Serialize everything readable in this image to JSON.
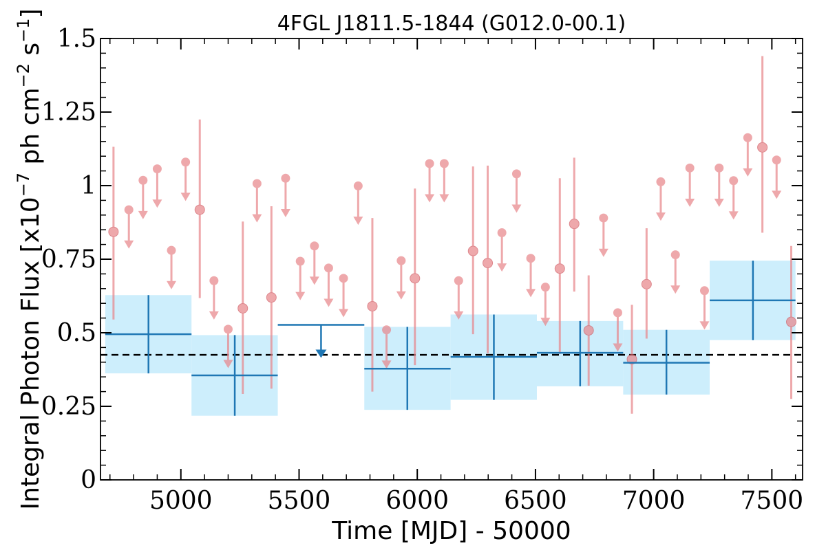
{
  "chart_data": {
    "type": "scatter",
    "title": "4FGL J1811.5-1844 (G012.0-00.1)",
    "xlabel": "Time [MJD] - 50000",
    "ylabel": "Integral Photon Flux [x10",
    "ylabel_sup1": "−7",
    "ylabel_mid": " ph cm",
    "ylabel_sup2": "−2",
    "ylabel_mid2": " s",
    "ylabel_sup3": "−1",
    "ylabel_end": "]",
    "xlim": [
      4660,
      7630
    ],
    "ylim": [
      0,
      1.5
    ],
    "xticks": [
      5000,
      5500,
      6000,
      6500,
      7000,
      7500
    ],
    "yticks": [
      0,
      0.25,
      0.5,
      0.75,
      1,
      1.25,
      1.5
    ],
    "ytick_labels": [
      "0",
      "0.25",
      "0.5",
      "0.75",
      "1",
      "1.25",
      "1.5"
    ],
    "mean_flux": 0.425,
    "colors": {
      "short_bins": "#e8878c",
      "long_bins": "#1f77b4",
      "long_bin_band": "#cdeefc",
      "mean_line": "#000000"
    },
    "long_bins": [
      {
        "x": 4863,
        "x0": 4680,
        "x1": 5045,
        "y": 0.495,
        "ylo": 0.362,
        "yhi": 0.628,
        "upper_limit": false
      },
      {
        "x": 5228,
        "x0": 5045,
        "x1": 5410,
        "y": 0.355,
        "ylo": 0.218,
        "yhi": 0.492,
        "upper_limit": false
      },
      {
        "x": 5593,
        "x0": 5410,
        "x1": 5776,
        "y": 0.527,
        "ylo": 0.527,
        "yhi": 0.527,
        "upper_limit": true
      },
      {
        "x": 5958,
        "x0": 5776,
        "x1": 6141,
        "y": 0.378,
        "ylo": 0.238,
        "yhi": 0.52,
        "upper_limit": false
      },
      {
        "x": 6324,
        "x0": 6141,
        "x1": 6506,
        "y": 0.418,
        "ylo": 0.272,
        "yhi": 0.562,
        "upper_limit": false
      },
      {
        "x": 6689,
        "x0": 6506,
        "x1": 6871,
        "y": 0.432,
        "ylo": 0.318,
        "yhi": 0.54,
        "upper_limit": false
      },
      {
        "x": 7054,
        "x0": 6871,
        "x1": 7237,
        "y": 0.398,
        "ylo": 0.29,
        "yhi": 0.51,
        "upper_limit": false
      },
      {
        "x": 7420,
        "x0": 7237,
        "x1": 7600,
        "y": 0.61,
        "ylo": 0.475,
        "yhi": 0.745,
        "upper_limit": false
      }
    ],
    "short_bins": [
      {
        "x": 4715,
        "y": 0.843,
        "ylo": 0.545,
        "yhi": 1.132,
        "upper_limit": false
      },
      {
        "x": 4780,
        "y": 0.918,
        "upper_limit": true
      },
      {
        "x": 4840,
        "y": 1.018,
        "upper_limit": true
      },
      {
        "x": 4900,
        "y": 1.057,
        "upper_limit": true
      },
      {
        "x": 4960,
        "y": 0.78,
        "upper_limit": true
      },
      {
        "x": 5020,
        "y": 1.08,
        "upper_limit": true
      },
      {
        "x": 5080,
        "y": 0.918,
        "ylo": 0.618,
        "yhi": 1.225,
        "upper_limit": false
      },
      {
        "x": 5140,
        "y": 0.677,
        "upper_limit": true
      },
      {
        "x": 5200,
        "y": 0.512,
        "upper_limit": true
      },
      {
        "x": 5262,
        "y": 0.583,
        "ylo": 0.292,
        "yhi": 0.878,
        "upper_limit": false
      },
      {
        "x": 5322,
        "y": 1.007,
        "upper_limit": true
      },
      {
        "x": 5383,
        "y": 0.62,
        "ylo": 0.31,
        "yhi": 0.93,
        "upper_limit": false
      },
      {
        "x": 5443,
        "y": 1.025,
        "upper_limit": true
      },
      {
        "x": 5505,
        "y": 0.743,
        "upper_limit": true
      },
      {
        "x": 5565,
        "y": 0.795,
        "upper_limit": true
      },
      {
        "x": 5625,
        "y": 0.72,
        "upper_limit": true
      },
      {
        "x": 5688,
        "y": 0.685,
        "upper_limit": true
      },
      {
        "x": 5750,
        "y": 0.999,
        "upper_limit": true
      },
      {
        "x": 5810,
        "y": 0.59,
        "ylo": 0.3,
        "yhi": 0.89,
        "upper_limit": false
      },
      {
        "x": 5870,
        "y": 0.51,
        "upper_limit": true
      },
      {
        "x": 5932,
        "y": 0.745,
        "upper_limit": true
      },
      {
        "x": 5990,
        "y": 0.685,
        "ylo": 0.39,
        "yhi": 0.99,
        "upper_limit": false
      },
      {
        "x": 6052,
        "y": 1.075,
        "upper_limit": true
      },
      {
        "x": 6114,
        "y": 1.075,
        "upper_limit": true
      },
      {
        "x": 6175,
        "y": 0.677,
        "upper_limit": true
      },
      {
        "x": 6236,
        "y": 0.778,
        "ylo": 0.495,
        "yhi": 1.065,
        "upper_limit": false
      },
      {
        "x": 6298,
        "y": 0.737,
        "ylo": 0.43,
        "yhi": 1.068,
        "upper_limit": false
      },
      {
        "x": 6358,
        "y": 0.84,
        "upper_limit": true
      },
      {
        "x": 6420,
        "y": 1.04,
        "upper_limit": true
      },
      {
        "x": 6480,
        "y": 0.753,
        "upper_limit": true
      },
      {
        "x": 6542,
        "y": 0.655,
        "upper_limit": true
      },
      {
        "x": 6603,
        "y": 0.718,
        "ylo": 0.428,
        "yhi": 1.025,
        "upper_limit": false
      },
      {
        "x": 6664,
        "y": 0.87,
        "ylo": 0.64,
        "yhi": 1.095,
        "upper_limit": false
      },
      {
        "x": 6725,
        "y": 0.508,
        "ylo": 0.32,
        "yhi": 0.695,
        "upper_limit": false
      },
      {
        "x": 6788,
        "y": 0.89,
        "upper_limit": true
      },
      {
        "x": 6848,
        "y": 0.568,
        "upper_limit": true
      },
      {
        "x": 6908,
        "y": 0.41,
        "ylo": 0.225,
        "yhi": 0.595,
        "upper_limit": false
      },
      {
        "x": 6970,
        "y": 0.665,
        "ylo": 0.48,
        "yhi": 0.855,
        "upper_limit": false
      },
      {
        "x": 7030,
        "y": 1.013,
        "upper_limit": true
      },
      {
        "x": 7092,
        "y": 0.765,
        "upper_limit": true
      },
      {
        "x": 7153,
        "y": 1.06,
        "upper_limit": true
      },
      {
        "x": 7215,
        "y": 0.643,
        "upper_limit": true
      },
      {
        "x": 7277,
        "y": 1.06,
        "upper_limit": true
      },
      {
        "x": 7338,
        "y": 1.017,
        "upper_limit": true
      },
      {
        "x": 7398,
        "y": 1.163,
        "upper_limit": true
      },
      {
        "x": 7460,
        "y": 1.13,
        "ylo": 0.84,
        "yhi": 1.44,
        "upper_limit": false
      },
      {
        "x": 7520,
        "y": 1.087,
        "upper_limit": true
      },
      {
        "x": 7582,
        "y": 0.537,
        "ylo": 0.275,
        "yhi": 0.795,
        "upper_limit": false
      }
    ]
  }
}
